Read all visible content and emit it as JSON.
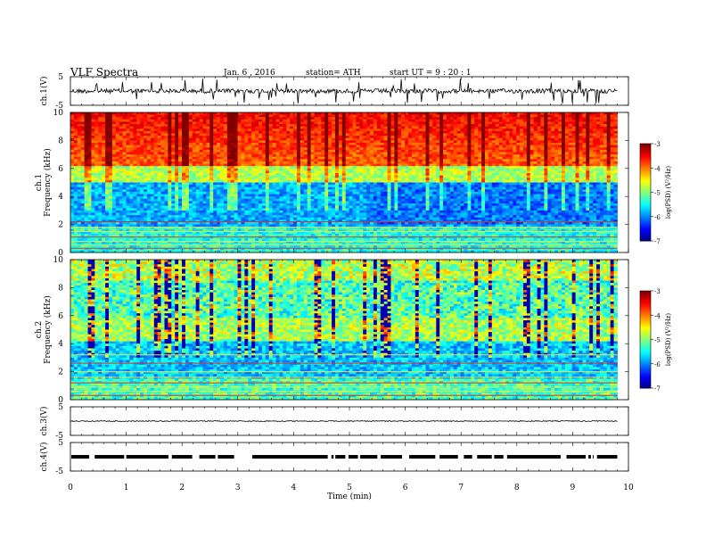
{
  "header": {
    "title": "VLF  Spectra",
    "date": "Jan. 6  , 2016",
    "station": "station= ATH",
    "start": "start  UT  =    9 : 20 : 1"
  },
  "chart_data": [
    {
      "type": "line",
      "panel": "ch1-waveform",
      "ylabel": "ch.1(V)",
      "ylim": [
        -5,
        5
      ],
      "yticks": [
        "5",
        "-5"
      ],
      "x_range_min": [
        0,
        9.8
      ],
      "description_values": {
        "mean_level_V": 0.0,
        "typical_spike_V": 2.0
      }
    },
    {
      "type": "heatmap",
      "panel": "ch1-spectrogram",
      "ylabel": "ch.1\nFrequency  (kHz)",
      "ylim": [
        0,
        10
      ],
      "yticks": [
        "0",
        "2",
        "4",
        "6",
        "8",
        "10"
      ],
      "x_range_min": [
        0,
        9.8
      ],
      "colorbar": {
        "label": "log(PSD) (V²/Hz)",
        "range": [
          -7,
          -3
        ],
        "ticks": [
          "-3",
          "-4",
          "-5",
          "-6",
          "-7"
        ]
      }
    },
    {
      "type": "heatmap",
      "panel": "ch2-spectrogram",
      "ylabel": "ch.2\nFrequency  (kHz)",
      "ylim": [
        0,
        10
      ],
      "yticks": [
        "0",
        "2",
        "4",
        "6",
        "8",
        "10"
      ],
      "x_range_min": [
        0,
        9.8
      ],
      "colorbar": {
        "label": "log(PSD) (V²/Hz)",
        "range": [
          -7,
          -3
        ],
        "ticks": [
          "-3",
          "-4",
          "-5",
          "-6",
          "-7"
        ]
      }
    },
    {
      "type": "line",
      "panel": "ch3-waveform",
      "ylabel": "ch.3(V)",
      "ylim": [
        -5,
        5
      ],
      "yticks": [
        "5",
        "-5"
      ],
      "x_range_min": [
        0,
        9.8
      ],
      "description_values": {
        "mean_level_V": 0.0
      }
    },
    {
      "type": "line",
      "panel": "ch4-waveform",
      "ylabel": "ch.4(V)",
      "ylim": [
        -5,
        5
      ],
      "yticks": [
        "5",
        "-5"
      ],
      "x_range_min": [
        0,
        9.8
      ],
      "description_values": {
        "mean_level_V": 0.0
      }
    }
  ],
  "xaxis": {
    "label": "Time  (min)",
    "ticks": [
      "0",
      "1",
      "2",
      "3",
      "4",
      "5",
      "6",
      "7",
      "8",
      "9",
      "10"
    ],
    "range": [
      0,
      10
    ]
  }
}
